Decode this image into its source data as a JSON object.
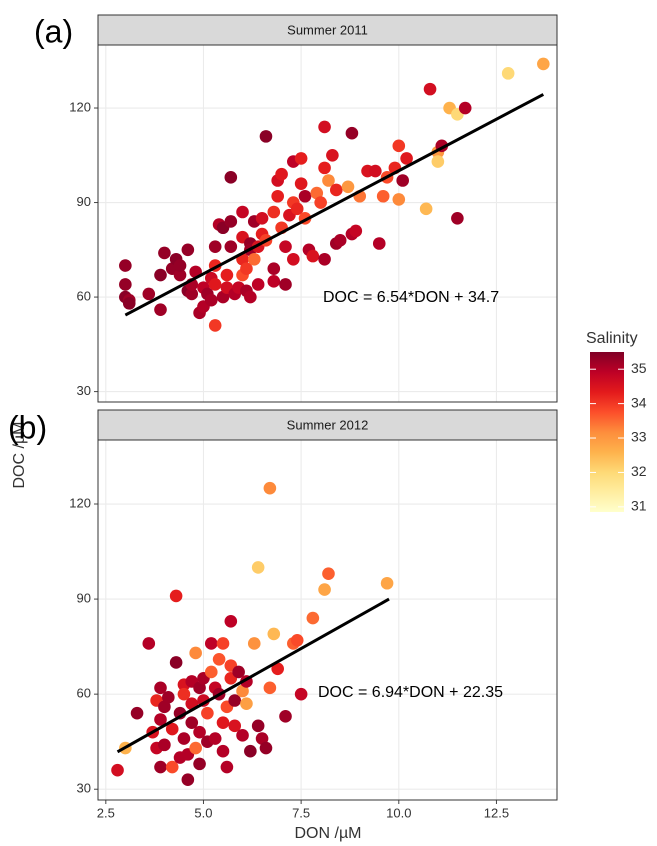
{
  "axis_titles": {
    "x": "DON /µM",
    "y": "DOC /µM"
  },
  "color_scale": {
    "title": "Salinity",
    "lim": [
      30.85,
      35.5
    ],
    "ticks": [
      31,
      32,
      33,
      34,
      35
    ],
    "colors": [
      "#ffffcc",
      "#ffeda0",
      "#fed976",
      "#feb24c",
      "#fd8d3c",
      "#fc4e2a",
      "#e31a1c",
      "#bd0026",
      "#800026"
    ]
  },
  "chart_data": [
    {
      "type": "scatter",
      "panel_label": "(a)",
      "title": "Summer 2011",
      "annotation": "DOC = 6.54*DON + 34.7",
      "xlim": [
        2.3,
        14.05
      ],
      "xticks": [
        2.5,
        {
          "value": 5,
          "label": "5.0"
        },
        7.5,
        {
          "value": 10,
          "label": "10.0"
        },
        12.5
      ],
      "ylim": [
        26.7,
        140
      ],
      "yticks": [
        30,
        60,
        90,
        120
      ],
      "grid": true,
      "fit_line": {
        "x": [
          3.0,
          13.7
        ],
        "y": [
          54.3,
          124.3
        ]
      },
      "x": [
        3.0,
        3.0,
        3.0,
        3.1,
        3.1,
        3.6,
        3.9,
        4.0,
        3.9,
        4.2,
        4.3,
        4.4,
        4.4,
        4.6,
        4.6,
        4.7,
        4.7,
        4.8,
        4.9,
        5.0,
        5.0,
        5.1,
        5.2,
        5.2,
        5.3,
        5.3,
        5.3,
        5.3,
        5.4,
        5.5,
        5.5,
        5.6,
        5.6,
        5.7,
        5.7,
        5.7,
        5.8,
        5.9,
        6.0,
        6.0,
        6.0,
        6.0,
        6.1,
        6.1,
        6.2,
        6.2,
        6.2,
        6.3,
        6.3,
        6.4,
        6.4,
        6.5,
        6.5,
        6.6,
        6.6,
        6.8,
        6.8,
        6.8,
        6.9,
        6.9,
        7.0,
        7.0,
        7.1,
        7.1,
        7.2,
        7.3,
        7.3,
        7.3,
        7.4,
        7.5,
        7.5,
        7.6,
        7.6,
        7.7,
        7.8,
        7.9,
        8.0,
        8.1,
        8.1,
        8.1,
        8.2,
        8.3,
        8.4,
        8.4,
        8.5,
        8.7,
        8.8,
        8.8,
        8.9,
        9.0,
        9.2,
        9.4,
        9.5,
        9.6,
        9.7,
        9.9,
        10.0,
        10.0,
        10.1,
        10.2,
        10.7,
        10.8,
        11.0,
        11.0,
        11.1,
        11.3,
        11.5,
        11.5,
        11.7,
        12.8,
        13.7
      ],
      "values": [
        70,
        64,
        60,
        59,
        58,
        61,
        67,
        74,
        56,
        69,
        72,
        67,
        70,
        75,
        62,
        61,
        64,
        68,
        55,
        57,
        63,
        61,
        66,
        59,
        76,
        70,
        64,
        51,
        83,
        82,
        60,
        63,
        67,
        84,
        76,
        98,
        61,
        63,
        87,
        79,
        72,
        67,
        69,
        62,
        77,
        75,
        60,
        84,
        72,
        76,
        64,
        85,
        80,
        111,
        78,
        87,
        69,
        65,
        97,
        92,
        99,
        82,
        76,
        64,
        86,
        103,
        90,
        72,
        88,
        104,
        96,
        92,
        85,
        75,
        73,
        93,
        90,
        114,
        101,
        72,
        97,
        105,
        77,
        94,
        78,
        95,
        112,
        80,
        81,
        92,
        100,
        100,
        77,
        92,
        98,
        101,
        91,
        108,
        97,
        104,
        88,
        126,
        106,
        103,
        108,
        120,
        118,
        85,
        120,
        131,
        134
      ],
      "salinity": [
        35.3,
        35.3,
        35.4,
        35.2,
        35.4,
        35.2,
        35.4,
        35.3,
        35.2,
        35.3,
        35.4,
        35.2,
        35.3,
        35.3,
        35.4,
        35.2,
        35.1,
        35.0,
        35.1,
        35.0,
        34.9,
        35.2,
        34.7,
        35.1,
        35.2,
        34.2,
        34.4,
        34.0,
        35.0,
        35.4,
        35.1,
        34.6,
        34.3,
        35.3,
        35.2,
        35.4,
        35.0,
        34.8,
        34.8,
        34.5,
        34.2,
        33.8,
        34.0,
        35.1,
        35.3,
        35.2,
        35.0,
        35.2,
        33.5,
        34.5,
        34.9,
        34.6,
        34.3,
        35.4,
        33.9,
        34.1,
        35.1,
        34.9,
        34.6,
        34.3,
        34.4,
        34.0,
        34.8,
        35.2,
        34.5,
        34.9,
        34.0,
        34.6,
        34.2,
        34.3,
        34.4,
        35.1,
        33.8,
        35.0,
        34.5,
        33.5,
        33.9,
        34.6,
        34.3,
        35.1,
        33.2,
        34.5,
        35.2,
        34.2,
        35.1,
        33.0,
        35.3,
        35.0,
        34.8,
        33.4,
        34.5,
        34.6,
        35.0,
        33.6,
        33.8,
        34.2,
        33.2,
        34.0,
        35.2,
        34.4,
        32.5,
        34.6,
        33.0,
        32.2,
        35.1,
        32.6,
        32.0,
        35.2,
        35.0,
        32.0,
        32.8
      ]
    },
    {
      "type": "scatter",
      "panel_label": "(b)",
      "title": "Summer 2012",
      "annotation": "DOC = 6.94*DON + 22.35",
      "xlim": [
        2.3,
        14.05
      ],
      "xticks": [
        2.5,
        {
          "value": 5,
          "label": "5.0"
        },
        7.5,
        {
          "value": 10,
          "label": "10.0"
        },
        12.5
      ],
      "ylim": [
        26.6,
        140.2
      ],
      "yticks": [
        30,
        60,
        90,
        120
      ],
      "grid": true,
      "fit_line": {
        "x": [
          2.8,
          9.75
        ],
        "y": [
          41.8,
          90.0
        ]
      },
      "x": [
        2.8,
        3.0,
        3.3,
        3.6,
        3.7,
        3.8,
        3.8,
        3.9,
        3.9,
        3.9,
        4.0,
        4.0,
        4.1,
        4.2,
        4.2,
        4.3,
        4.3,
        4.4,
        4.4,
        4.5,
        4.5,
        4.5,
        4.6,
        4.6,
        4.7,
        4.7,
        4.7,
        4.8,
        4.8,
        4.9,
        4.9,
        4.9,
        5.0,
        5.0,
        5.1,
        5.1,
        5.2,
        5.2,
        5.3,
        5.3,
        5.4,
        5.4,
        5.5,
        5.5,
        5.5,
        5.6,
        5.6,
        5.7,
        5.7,
        5.7,
        5.8,
        5.8,
        5.9,
        6.0,
        6.0,
        6.1,
        6.1,
        6.2,
        6.3,
        6.4,
        6.4,
        6.5,
        6.6,
        6.7,
        6.7,
        6.8,
        6.9,
        7.1,
        7.3,
        7.4,
        7.5,
        7.8,
        8.1,
        8.2,
        9.7
      ],
      "values": [
        36,
        43,
        54,
        76,
        48,
        58,
        43,
        62,
        52,
        37,
        44,
        56,
        59,
        49,
        37,
        91,
        70,
        54,
        40,
        63,
        60,
        46,
        33,
        41,
        64,
        57,
        51,
        73,
        43,
        62,
        48,
        38,
        65,
        58,
        45,
        54,
        76,
        67,
        62,
        46,
        71,
        60,
        76,
        51,
        42,
        56,
        37,
        83,
        69,
        65,
        58,
        50,
        67,
        61,
        47,
        64,
        57,
        42,
        76,
        100,
        50,
        46,
        43,
        62,
        125,
        79,
        68,
        53,
        76,
        77,
        60,
        84,
        93,
        98,
        95
      ],
      "salinity": [
        34.6,
        32.6,
        35.3,
        35.0,
        34.5,
        34.2,
        34.8,
        35.1,
        35.0,
        35.2,
        35.1,
        35.2,
        35.2,
        34.4,
        33.8,
        34.3,
        35.4,
        35.3,
        35.0,
        34.5,
        34.1,
        35.1,
        35.3,
        35.0,
        35.0,
        34.6,
        35.2,
        33.2,
        33.5,
        35.2,
        35.0,
        35.3,
        35.1,
        34.7,
        35.2,
        33.9,
        34.9,
        33.6,
        34.8,
        35.0,
        33.7,
        35.2,
        33.9,
        34.4,
        35.0,
        33.8,
        35.0,
        34.9,
        33.9,
        34.2,
        35.3,
        34.5,
        35.2,
        33.2,
        35.0,
        35.0,
        32.9,
        35.4,
        33.1,
        32.2,
        35.3,
        35.1,
        35.3,
        33.6,
        33.2,
        32.5,
        34.3,
        35.2,
        33.6,
        33.8,
        34.8,
        33.5,
        32.8,
        33.6,
        32.8
      ]
    }
  ]
}
